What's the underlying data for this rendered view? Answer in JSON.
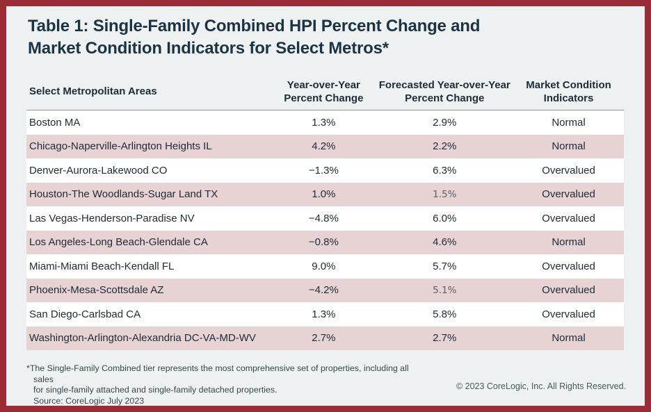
{
  "page": {
    "title": "Table 1: Single-Family Combined HPI Percent Change and\nMarket Condition Indicators for Select Metros*",
    "footnote": "*The Single-Family Combined tier represents the most comprehensive set of properties, including all sales\nfor single-family attached and single-family detached properties.\nSource: CoreLogic July 2023",
    "copyright": "© 2023 CoreLogic, Inc. All Rights Reserved."
  },
  "colors": {
    "frame_red": "#9b2b35",
    "background": "#edf1f1",
    "title_navy": "#1c3343",
    "body_text": "#202c38",
    "stripe_pink": "#e7d2d4",
    "row_white": "#ffffff",
    "header_rule_gray": "#909496",
    "muted_value_gray": "#5a6064"
  },
  "chart_data": {
    "type": "table",
    "title": "Table 1: Single-Family Combined HPI Percent Change and Market Condition Indicators for Select Metros*",
    "columns": [
      "Select Metropolitan Areas",
      "Year-over-Year Percent Change",
      "Forecasted Year-over-Year Percent Change",
      "Market Condition Indicators"
    ],
    "header_labels": {
      "metro": "Select Metropolitan Areas",
      "yoy": "Year-over-Year\nPercent Change",
      "forecast": "Forecasted Year-over-Year\nPercent Change",
      "indicator": "Market Condition\nIndicators"
    },
    "rows": [
      {
        "metro": "Boston MA",
        "yoy": "1.3%",
        "forecast": "2.9%",
        "indicator": "Normal"
      },
      {
        "metro": "Chicago-Naperville-Arlington Heights IL",
        "yoy": "4.2%",
        "forecast": "2.2%",
        "indicator": "Normal"
      },
      {
        "metro": "Denver-Aurora-Lakewood CO",
        "yoy": "−1.3%",
        "forecast": "6.3%",
        "indicator": "Overvalued"
      },
      {
        "metro": "Houston-The Woodlands-Sugar Land TX",
        "yoy": "1.0%",
        "forecast": "1.5%",
        "indicator": "Overvalued",
        "forecast_muted": true
      },
      {
        "metro": "Las Vegas-Henderson-Paradise NV",
        "yoy": "−4.8%",
        "forecast": "6.0%",
        "indicator": "Overvalued"
      },
      {
        "metro": "Los Angeles-Long Beach-Glendale CA",
        "yoy": "−0.8%",
        "forecast": "4.6%",
        "indicator": "Normal"
      },
      {
        "metro": "Miami-Miami Beach-Kendall FL",
        "yoy": "9.0%",
        "forecast": "5.7%",
        "indicator": "Overvalued"
      },
      {
        "metro": "Phoenix-Mesa-Scottsdale AZ",
        "yoy": "−4.2%",
        "forecast": "5.1%",
        "indicator": "Overvalued",
        "forecast_muted": true
      },
      {
        "metro": "San Diego-Carlsbad CA",
        "yoy": "1.3%",
        "forecast": "5.8%",
        "indicator": "Overvalued"
      },
      {
        "metro": "Washington-Arlington-Alexandria DC-VA-MD-WV",
        "yoy": "2.7%",
        "forecast": "2.7%",
        "indicator": "Normal"
      }
    ]
  }
}
